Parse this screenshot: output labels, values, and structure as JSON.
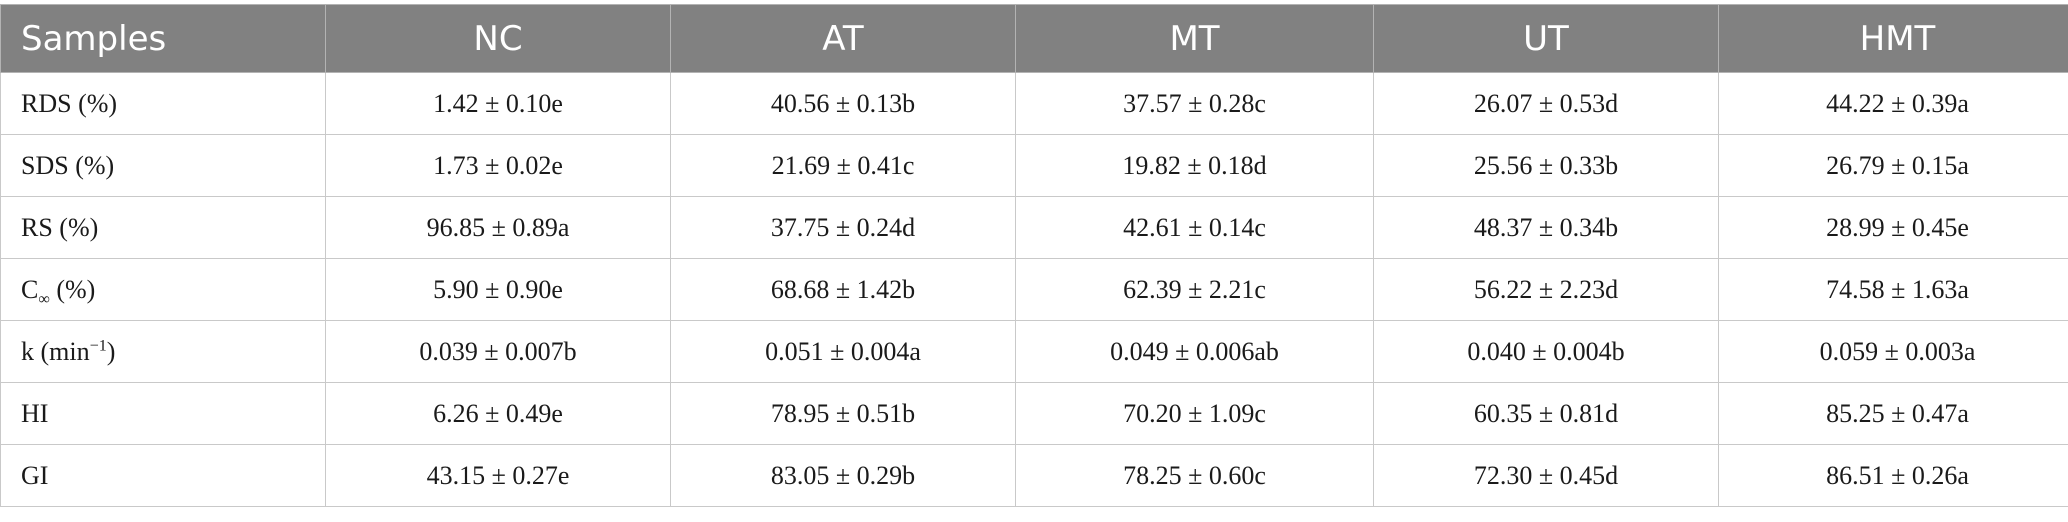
{
  "table": {
    "headers": [
      "Samples",
      "NC",
      "AT",
      "MT",
      "UT",
      "HMT"
    ],
    "rows": [
      {
        "label": "RDS (%)",
        "cells": [
          "1.42 ± 0.10e",
          "40.56 ± 0.13b",
          "37.57 ± 0.28c",
          "26.07 ± 0.53d",
          "44.22 ± 0.39a"
        ]
      },
      {
        "label": "SDS (%)",
        "cells": [
          "1.73 ± 0.02e",
          "21.69 ± 0.41c",
          "19.82 ± 0.18d",
          "25.56 ± 0.33b",
          "26.79 ± 0.15a"
        ]
      },
      {
        "label": "RS (%)",
        "cells": [
          "96.85 ± 0.89a",
          "37.75 ± 0.24d",
          "42.61 ± 0.14c",
          "48.37 ± 0.34b",
          "28.99 ± 0.45e"
        ]
      },
      {
        "label_main": "C",
        "label_sub": "∞",
        "label_rest": " (%)",
        "cells": [
          "5.90 ± 0.90e",
          "68.68 ± 1.42b",
          "62.39 ± 2.21c",
          "56.22 ± 2.23d",
          "74.58 ± 1.63a"
        ]
      },
      {
        "label_main": "k (min",
        "label_sup": "−1",
        "label_rest": ")",
        "cells": [
          "0.039 ± 0.007b",
          "0.051 ± 0.004a",
          "0.049 ± 0.006ab",
          "0.040 ± 0.004b",
          "0.059 ± 0.003a"
        ]
      },
      {
        "label": "HI",
        "cells": [
          "6.26 ± 0.49e",
          "78.95 ± 0.51b",
          "70.20 ± 1.09c",
          "60.35 ± 0.81d",
          "85.25 ± 0.47a"
        ]
      },
      {
        "label": "GI",
        "cells": [
          "43.15 ± 0.27e",
          "83.05 ± 0.29b",
          "78.25 ± 0.60c",
          "72.30 ± 0.45d",
          "86.51 ± 0.26a"
        ]
      }
    ]
  },
  "colors": {
    "header_bg": "#818181",
    "header_text": "#ffffff",
    "border": "#c9c9c9"
  }
}
